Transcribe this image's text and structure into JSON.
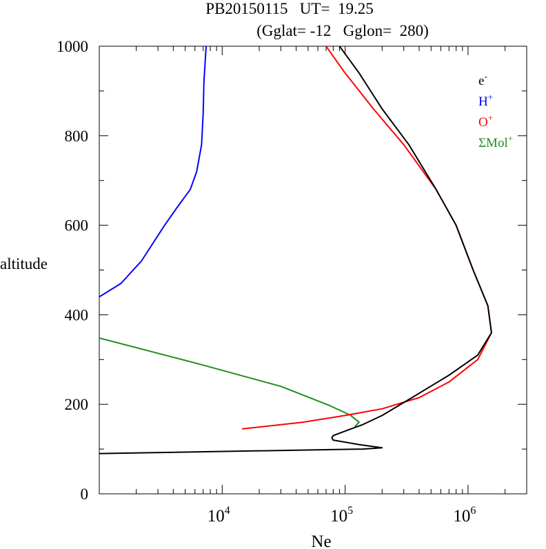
{
  "chart_data": {
    "type": "line",
    "title": "PB20150115   UT=  19.25",
    "subtitle": "(Gglat= -12   Gglon=  280)",
    "xlabel": "Ne",
    "ylabel": "altitude",
    "xscale": "log",
    "xlim": [
      1000,
      3000000
    ],
    "ylim": [
      0,
      1000
    ],
    "grid": false,
    "legend_position": "top-right",
    "x_ticks": [
      {
        "value": 10000,
        "base": "10",
        "exp": "4"
      },
      {
        "value": 100000,
        "base": "10",
        "exp": "5"
      },
      {
        "value": 1000000,
        "base": "10",
        "exp": "6"
      }
    ],
    "y_ticks": [
      {
        "value": 0,
        "label": "0"
      },
      {
        "value": 200,
        "label": "200"
      },
      {
        "value": 400,
        "label": "400"
      },
      {
        "value": 600,
        "label": "600"
      },
      {
        "value": 800,
        "label": "800"
      },
      {
        "value": 1000,
        "label": "1000"
      }
    ],
    "series": [
      {
        "name": "e",
        "sup": "-",
        "color": "#000000",
        "points": [
          [
            1000,
            90
          ],
          [
            140000,
            100
          ],
          [
            200000,
            103
          ],
          [
            130000,
            110
          ],
          [
            80000,
            120
          ],
          [
            78000,
            125
          ],
          [
            80000,
            130
          ],
          [
            100000,
            140
          ],
          [
            140000,
            155
          ],
          [
            200000,
            175
          ],
          [
            350000,
            215
          ],
          [
            700000,
            265
          ],
          [
            1200000,
            310
          ],
          [
            1550000,
            360
          ],
          [
            1450000,
            420
          ],
          [
            1100000,
            500
          ],
          [
            800000,
            600
          ],
          [
            550000,
            680
          ],
          [
            330000,
            780
          ],
          [
            200000,
            860
          ],
          [
            130000,
            940
          ],
          [
            90000,
            1000
          ]
        ]
      },
      {
        "name": "H",
        "sup": "+",
        "color": "#0000ff",
        "points": [
          [
            1000,
            440
          ],
          [
            1500,
            470
          ],
          [
            2200,
            520
          ],
          [
            3400,
            600
          ],
          [
            4300,
            640
          ],
          [
            5500,
            680
          ],
          [
            6200,
            720
          ],
          [
            6800,
            780
          ],
          [
            7000,
            850
          ],
          [
            7100,
            920
          ],
          [
            7400,
            1000
          ]
        ]
      },
      {
        "name": "O",
        "sup": "+",
        "color": "#ff0000",
        "points": [
          [
            14500,
            145
          ],
          [
            45000,
            160
          ],
          [
            100000,
            175
          ],
          [
            200000,
            190
          ],
          [
            400000,
            215
          ],
          [
            700000,
            250
          ],
          [
            1200000,
            300
          ],
          [
            1550000,
            360
          ],
          [
            1450000,
            420
          ],
          [
            1100000,
            500
          ],
          [
            800000,
            600
          ],
          [
            550000,
            680
          ],
          [
            300000,
            780
          ],
          [
            170000,
            860
          ],
          [
            100000,
            940
          ],
          [
            70000,
            1000
          ]
        ]
      },
      {
        "name": "ΣMol",
        "sup": "+",
        "color": "#228b22",
        "points": [
          [
            1000,
            348
          ],
          [
            6500,
            290
          ],
          [
            30000,
            240
          ],
          [
            75000,
            197
          ],
          [
            110000,
            176
          ],
          [
            130000,
            160
          ],
          [
            120000,
            150
          ]
        ]
      }
    ]
  }
}
